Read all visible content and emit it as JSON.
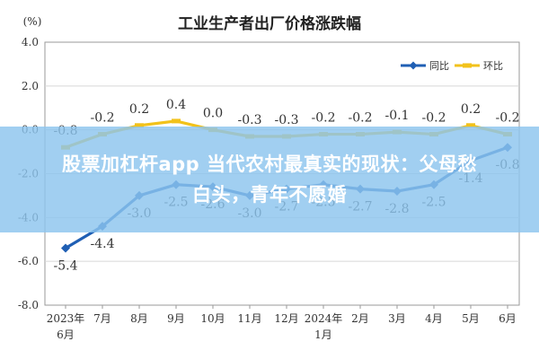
{
  "chart_data": {
    "type": "line",
    "title": "工业生产者出厂价格涨跌幅",
    "unit_label": "(%)",
    "categories": [
      [
        "2023年",
        "6月"
      ],
      [
        "7月"
      ],
      [
        "8月"
      ],
      [
        "9月"
      ],
      [
        "10月"
      ],
      [
        "11月"
      ],
      [
        "12月"
      ],
      [
        "2024年",
        "1月"
      ],
      [
        "2月"
      ],
      [
        "3月"
      ],
      [
        "4月"
      ],
      [
        "5月"
      ],
      [
        "6月"
      ]
    ],
    "ylim": [
      -8.0,
      4.0
    ],
    "yticks": [
      "4.0",
      "2.0",
      "0.0",
      "-2.0",
      "-4.0",
      "-6.0",
      "-8.0"
    ],
    "grid": true,
    "legend_position": "top-right",
    "series": [
      {
        "name": "同比",
        "color": "#1f5fb4",
        "values": [
          -5.4,
          -4.4,
          -3.0,
          -2.5,
          -2.6,
          -3.0,
          -2.7,
          -2.5,
          -2.7,
          -2.8,
          -2.5,
          -1.4,
          -0.8
        ],
        "labels": [
          "-5.4",
          "-4.4",
          "-3.0",
          "-2.5",
          "-2.6",
          "-3.0",
          "-2.7",
          "-2.5",
          "-2.7",
          "-2.8",
          "-2.5",
          "-1.4",
          "-0.8"
        ]
      },
      {
        "name": "环比",
        "color": "#f2c21b",
        "values": [
          -0.8,
          -0.2,
          0.2,
          0.4,
          0.0,
          -0.3,
          -0.3,
          -0.2,
          -0.2,
          -0.1,
          -0.2,
          0.2,
          -0.2
        ],
        "labels": [
          "-0.8",
          "-0.2",
          "0.2",
          "0.4",
          "0.0",
          "-0.3",
          "-0.3",
          "-0.2",
          "-0.2",
          "-0.1",
          "-0.2",
          "0.2",
          "-0.2"
        ]
      }
    ]
  },
  "overlay": {
    "line1": "股票加杠杆app 当代农村最真实的现状：父母愁",
    "line2": "白头，青年不愿婚"
  }
}
